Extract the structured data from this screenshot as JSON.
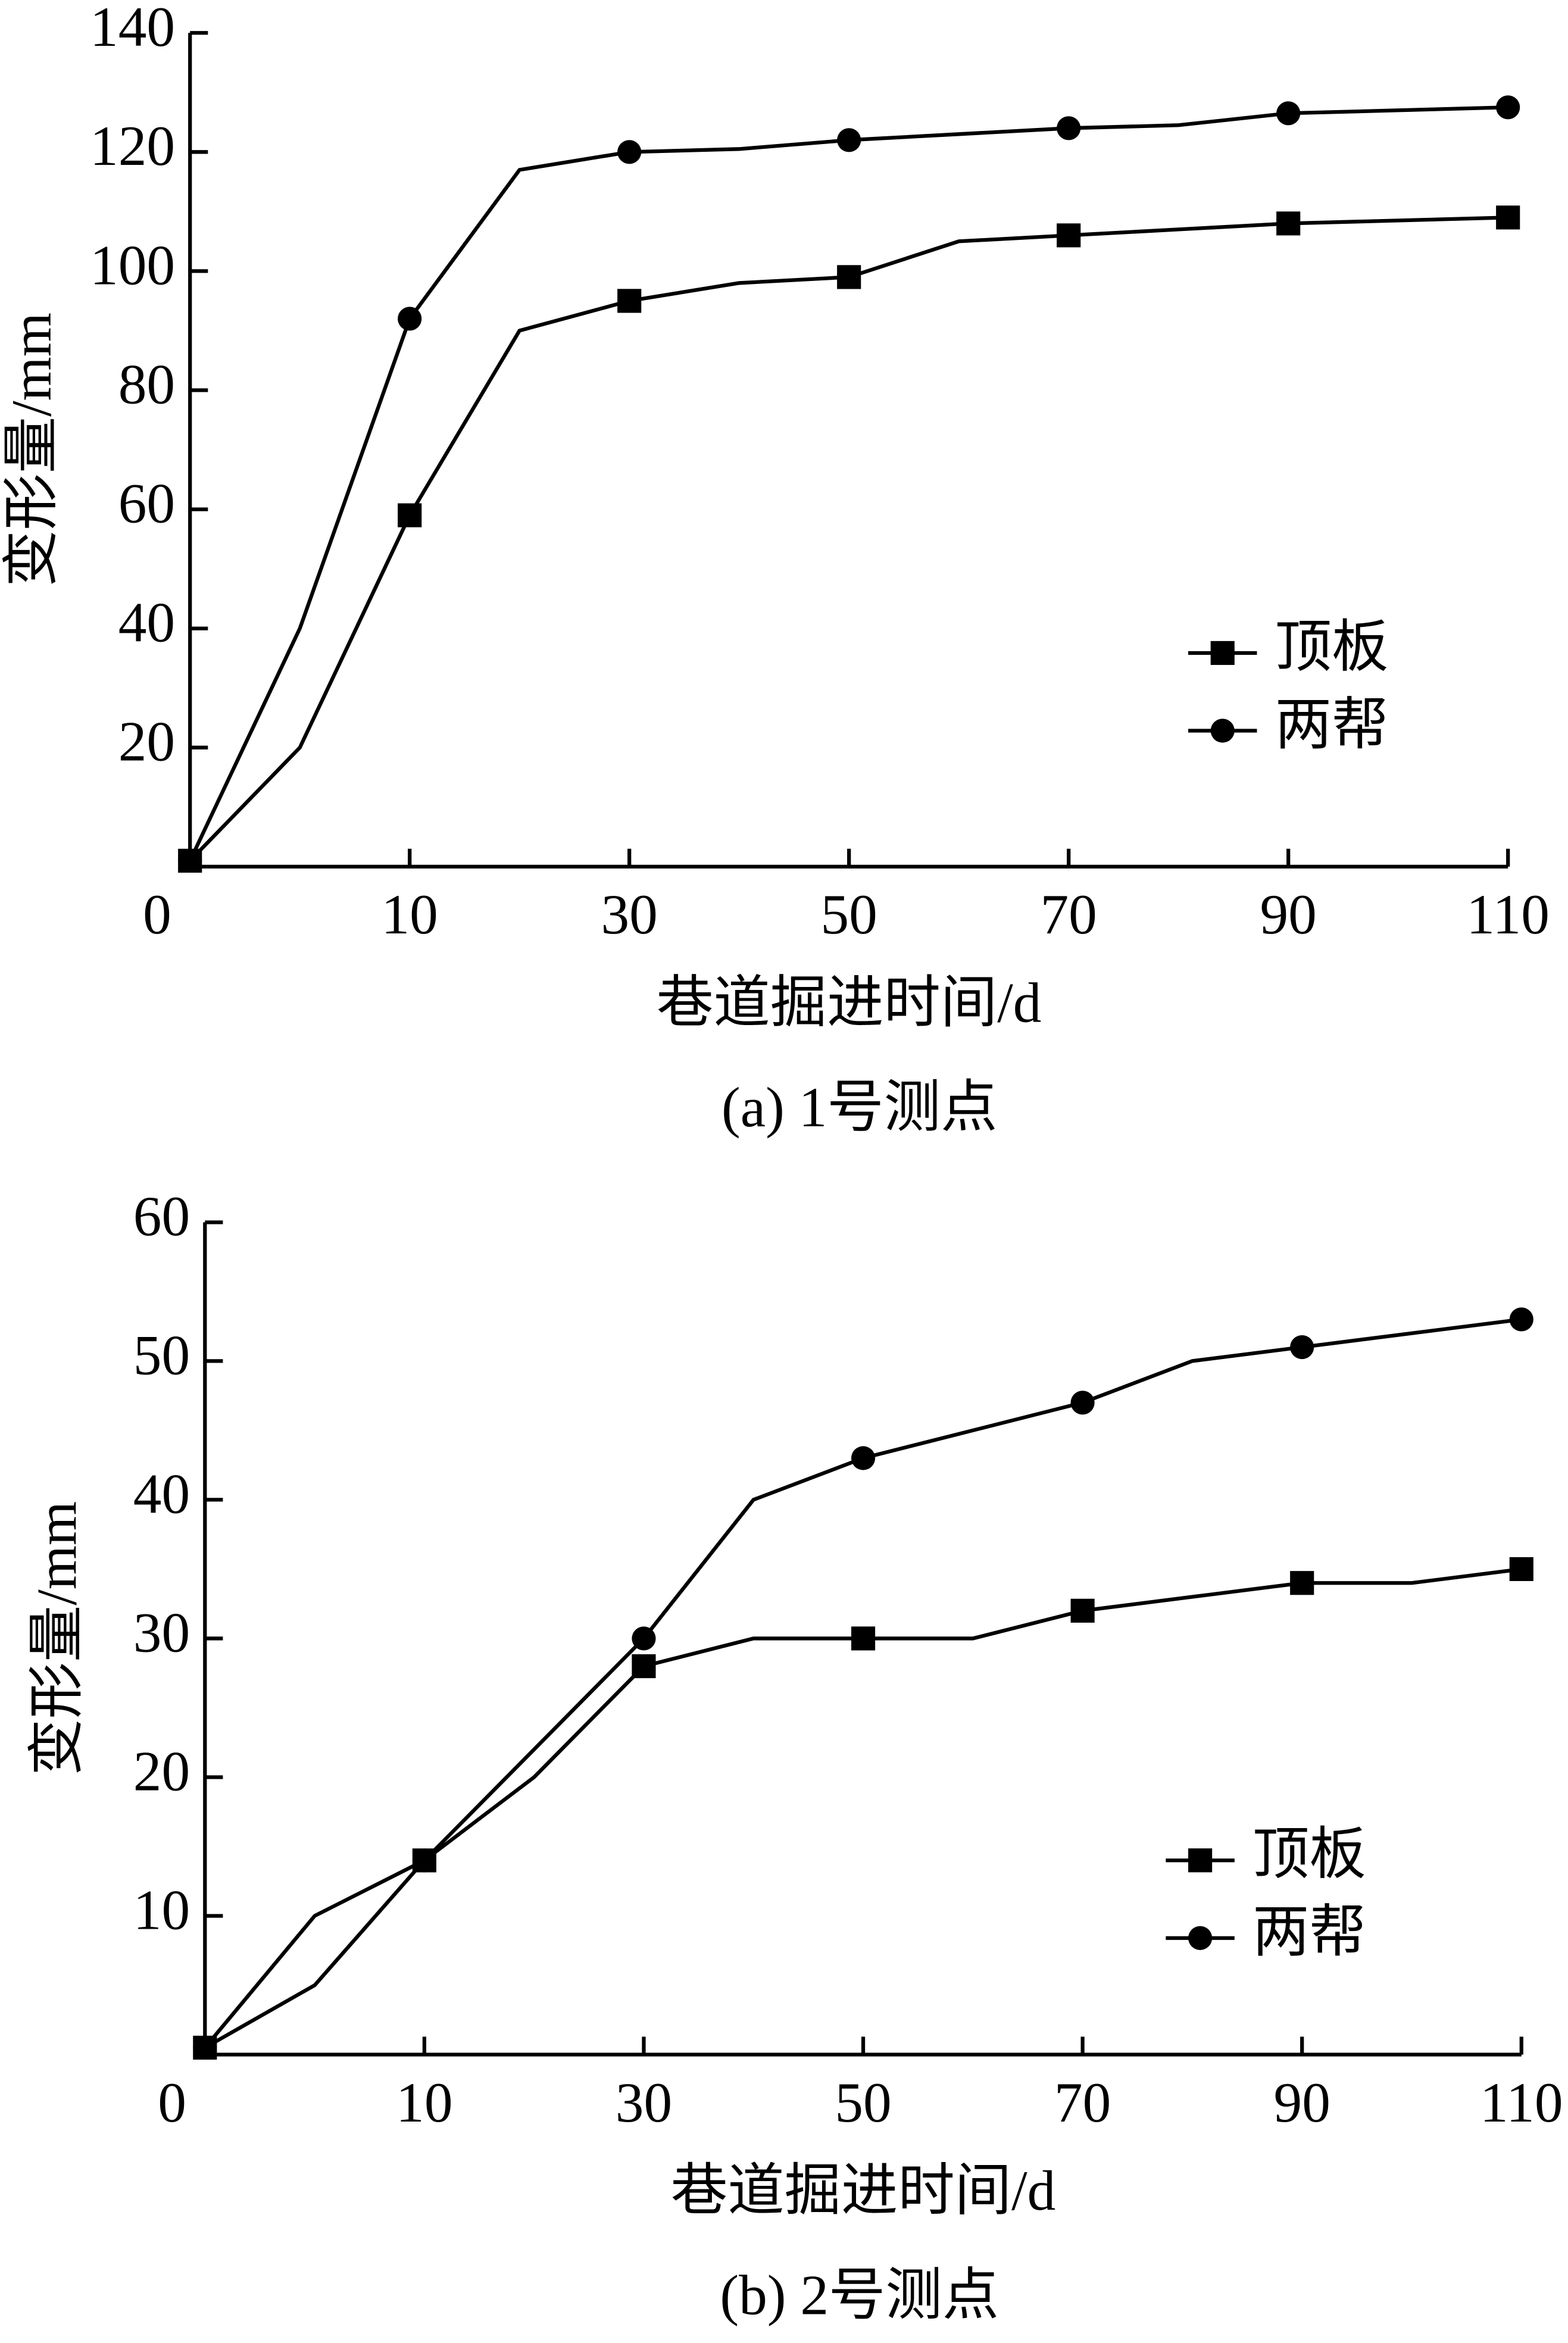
{
  "chart_data": [
    {
      "type": "line",
      "caption": "(a)  1号测点",
      "x_label": "巷道掘进时间/d",
      "y_label": "变形量/mm",
      "origin_label": "0",
      "x": [
        -10,
        0,
        10,
        20,
        30,
        40,
        50,
        60,
        70,
        80,
        90,
        110
      ],
      "xlim": [
        -10,
        110
      ],
      "xticks": [
        10,
        30,
        50,
        70,
        90,
        110
      ],
      "ylim": [
        0,
        140
      ],
      "yticks": [
        20,
        40,
        60,
        80,
        100,
        120,
        140
      ],
      "series": [
        {
          "name": "顶板",
          "color": "#000000",
          "marker": "square",
          "values": [
            1,
            20,
            59,
            90,
            95,
            98,
            99,
            105,
            106,
            107,
            108,
            109
          ]
        },
        {
          "name": "两帮",
          "color": "#000000",
          "marker": "circle",
          "values": [
            1,
            40,
            92,
            117,
            120,
            120.5,
            122,
            123,
            124,
            124.5,
            126.5,
            127.5
          ]
        }
      ]
    },
    {
      "type": "line",
      "caption": "(b)  2号测点",
      "x_label": "巷道掘进时间/d",
      "y_label": "变形量/mm",
      "origin_label": "0",
      "x": [
        -10,
        0,
        10,
        20,
        30,
        40,
        50,
        60,
        70,
        80,
        90,
        100,
        110
      ],
      "xlim": [
        -10,
        110
      ],
      "xticks": [
        10,
        30,
        50,
        70,
        90,
        110
      ],
      "ylim": [
        0,
        60
      ],
      "yticks": [
        10,
        20,
        30,
        40,
        50,
        60
      ],
      "series": [
        {
          "name": "顶板",
          "color": "#000000",
          "marker": "square",
          "values": [
            0.5,
            5,
            14,
            20,
            28,
            30,
            30,
            30,
            32,
            33,
            34,
            34,
            35
          ]
        },
        {
          "name": "两帮",
          "color": "#000000",
          "marker": "circle",
          "values": [
            0.5,
            10,
            14,
            22,
            30,
            40,
            43,
            45,
            47,
            50,
            51,
            52,
            53
          ]
        }
      ]
    }
  ]
}
